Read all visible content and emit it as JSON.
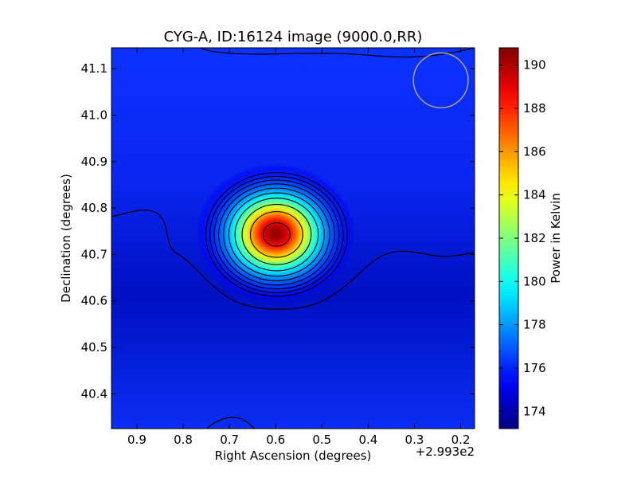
{
  "chart_data": {
    "type": "heatmap",
    "title": "CYG-A, ID:16124 image (9000.0,RR)",
    "xlabel": "Right Ascension (degrees)",
    "ylabel": "Declination (degrees)",
    "x_offset_label": "+2.993e2",
    "xlim": [
      0.955,
      0.17
    ],
    "ylim": [
      40.325,
      41.145
    ],
    "x_ticks": [
      0.9,
      0.8,
      0.7,
      0.6,
      0.5,
      0.4,
      0.3,
      0.2
    ],
    "x_tick_labels": [
      "0.9",
      "0.8",
      "0.7",
      "0.6",
      "0.5",
      "0.4",
      "0.3",
      "0.2"
    ],
    "y_ticks": [
      40.4,
      40.5,
      40.6,
      40.7,
      40.8,
      40.9,
      41.0,
      41.1
    ],
    "y_tick_labels": [
      "40.4",
      "40.5",
      "40.6",
      "40.7",
      "40.8",
      "40.9",
      "41.0",
      "41.1"
    ],
    "colorbar": {
      "label": "Power in Kelvin",
      "range": [
        173.2,
        190.8
      ],
      "ticks": [
        174,
        176,
        178,
        180,
        182,
        184,
        186,
        188,
        190
      ],
      "tick_labels": [
        "174",
        "176",
        "178",
        "180",
        "182",
        "184",
        "186",
        "188",
        "190"
      ],
      "colormap": "jet"
    },
    "source": {
      "name": "CYG-A",
      "peak_ra_offset": 0.598,
      "peak_dec": 40.743,
      "peak_value": 190.5,
      "background_value": 175.0
    },
    "contour_levels": [
      175.2,
      176.6,
      178.2,
      179.7,
      181.2,
      182.7,
      184.2,
      185.7,
      187.2,
      188.6,
      190.0
    ],
    "beam_marker": {
      "ra_offset": 0.243,
      "dec": 41.075,
      "radius_deg": 0.059,
      "color": "#b7ad78"
    }
  }
}
